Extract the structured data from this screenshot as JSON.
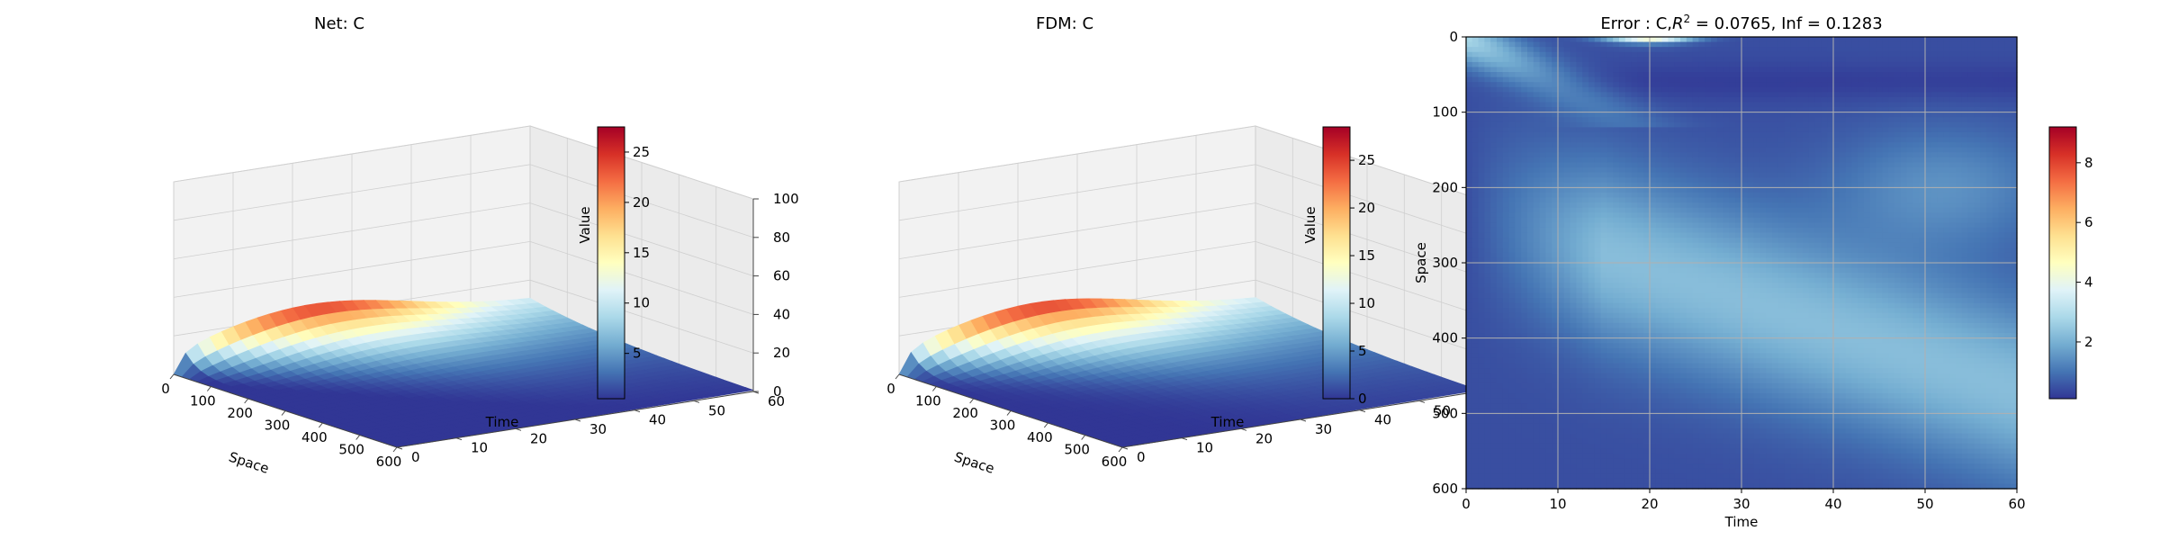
{
  "chart_data": [
    {
      "type": "surface3d",
      "title": "Net: C",
      "xlabel": "Space",
      "ylabel": "Time",
      "zlabel": "Value",
      "xticks": [
        "0",
        "100",
        "200",
        "300",
        "400",
        "500",
        "600"
      ],
      "yticks": [
        "0",
        "10",
        "20",
        "30",
        "40",
        "50",
        "60"
      ],
      "zticks": [
        "0",
        "20",
        "40",
        "60",
        "80",
        "100"
      ],
      "xlim": [
        0,
        600
      ],
      "ylim": [
        0,
        60
      ],
      "zlim": [
        0,
        100
      ],
      "peak": {
        "space": 0,
        "time": 20,
        "value": 27
      },
      "colorbar": {
        "ticks": [
          "5",
          "10",
          "15",
          "20",
          "25"
        ],
        "range": [
          0.5,
          27.5
        ],
        "cmap": "RdYlBu_r"
      }
    },
    {
      "type": "surface3d",
      "title": "FDM: C",
      "xlabel": "Space",
      "ylabel": "Time",
      "zlabel": "Value",
      "xticks": [
        "0",
        "100",
        "200",
        "300",
        "400",
        "500",
        "600"
      ],
      "yticks": [
        "0",
        "10",
        "20",
        "30",
        "40",
        "50",
        "60"
      ],
      "zticks": [
        "0",
        "20",
        "40",
        "60",
        "80",
        "100"
      ],
      "xlim": [
        0,
        600
      ],
      "ylim": [
        0,
        60
      ],
      "zlim": [
        0,
        100
      ],
      "peak": {
        "space": 0,
        "time": 20,
        "value": 28
      },
      "colorbar": {
        "ticks": [
          "0",
          "5",
          "10",
          "15",
          "20",
          "25"
        ],
        "range": [
          0,
          28.5
        ],
        "cmap": "RdYlBu_r"
      }
    },
    {
      "type": "heatmap",
      "title_prefix": "Error : C,",
      "title_r": "R",
      "title_sup": "2",
      "title_suffix": " = 0.0765, Inf = 0.1283",
      "xlabel": "Time",
      "ylabel": "Space",
      "xticks": [
        "0",
        "10",
        "20",
        "30",
        "40",
        "50",
        "60"
      ],
      "yticks": [
        "0",
        "100",
        "200",
        "300",
        "400",
        "500",
        "600"
      ],
      "xlim": [
        0,
        60
      ],
      "ylim": [
        600,
        0
      ],
      "grid": true,
      "max_error": {
        "time": 20,
        "space": 0,
        "value": 9
      },
      "colorbar": {
        "ticks": [
          "2",
          "4",
          "6",
          "8"
        ],
        "range": [
          0.1,
          9.2
        ],
        "cmap": "RdYlBu_r"
      }
    }
  ]
}
